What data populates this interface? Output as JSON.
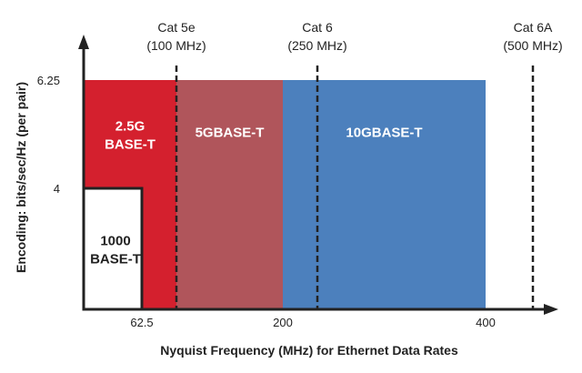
{
  "chart_data": {
    "type": "area",
    "xlabel": "Nyquist Frequency (MHz) for Ethernet Data Rates",
    "ylabel": "Encoding: bits/sec/Hz (per pair)",
    "x_ticks": [
      {
        "value": 62.5,
        "label": "62.5"
      },
      {
        "value": 200,
        "label": "200"
      },
      {
        "value": 400,
        "label": "400"
      }
    ],
    "y_ticks": [
      {
        "value": 4,
        "label": "4"
      },
      {
        "value": 6.25,
        "label": "6.25"
      }
    ],
    "regions": [
      {
        "name": "2.5G BASE-T",
        "lines": [
          "2.5G",
          "BASE-T"
        ],
        "x0": 0,
        "x1": 100,
        "y": 6.25,
        "color": "#d4202e"
      },
      {
        "name": "5GBASE-T",
        "lines": [
          "5GBASE-T"
        ],
        "x0": 100,
        "x1": 200,
        "y": 6.25,
        "color": "#b0555b"
      },
      {
        "name": "10GBASE-T",
        "lines": [
          "10GBASE-T"
        ],
        "x0": 200,
        "x1": 400,
        "y": 6.25,
        "color": "#4c80bd"
      },
      {
        "name": "1000 BASE-T",
        "lines": [
          "1000",
          "BASE-T"
        ],
        "x0": 0,
        "x1": 62.5,
        "y": 4,
        "color": "#ffffff"
      }
    ],
    "cable_limits": [
      {
        "name": "Cat 5e",
        "freq_label": "(100 MHz)",
        "value": 100
      },
      {
        "name": "Cat 6",
        "freq_label": "(250 MHz)",
        "value": 250
      },
      {
        "name": "Cat 6A",
        "freq_label": "(500 MHz)",
        "value": 500
      }
    ]
  }
}
